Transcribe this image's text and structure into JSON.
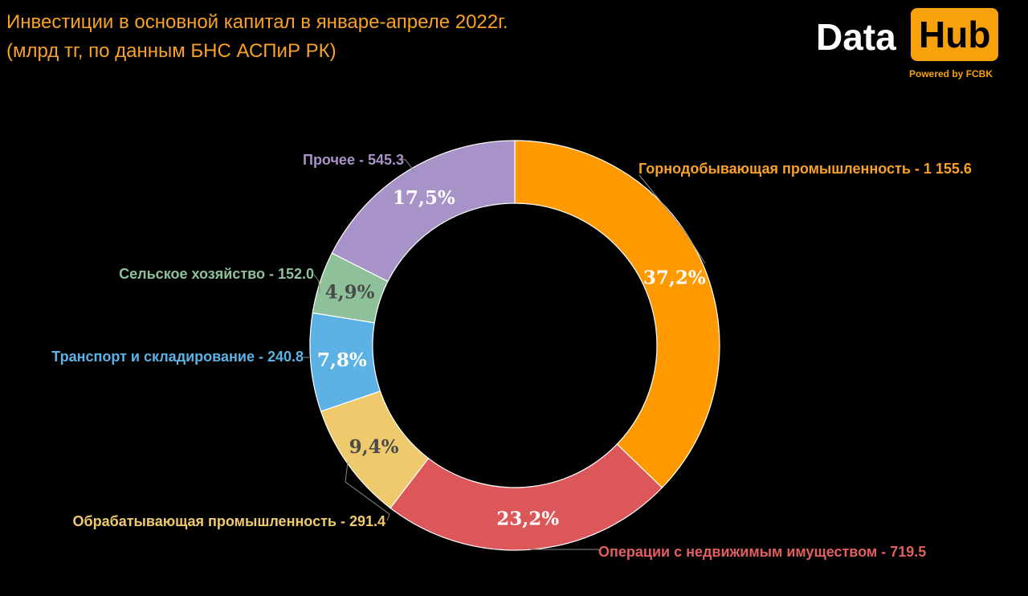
{
  "title": {
    "line1": "Инвестиции в основной капитал в январе-апреле 2022г.",
    "line2": "(млрд тг, по данным БНС АСПиР РК)"
  },
  "logo": {
    "data_text": "Data",
    "hub_text": "Hub",
    "subtitle": "Powered by FCBK"
  },
  "colors": {
    "accent": "#F7A226",
    "background": "#000000"
  },
  "chart_data": {
    "type": "pie",
    "style": "donut",
    "title": "Инвестиции в основной капитал в январе-апреле 2022г.",
    "subtitle": "(млрд тг, по данным БНС АСПиР РК)",
    "slices": [
      {
        "label": "Горнодобывающая промышленность - 1 155.6",
        "value": 1155.6,
        "percent_label": "37,2%",
        "color": "#FF9900",
        "label_color": "#F7A226",
        "pct_color": "#FFFFFF"
      },
      {
        "label": "Операции с недвижимым имуществом - 719.5",
        "value": 719.5,
        "percent_label": "23,2%",
        "color": "#DC5759",
        "label_color": "#E25F5F",
        "pct_color": "#FFFFFF"
      },
      {
        "label": "Обрабатывающая промышленность - 291.4",
        "value": 291.4,
        "percent_label": "9,4%",
        "color": "#EFCA6C",
        "label_color": "#EFCA6C",
        "pct_color": "#4A4A4A"
      },
      {
        "label": "Транспорт и складирование - 240.8",
        "value": 240.8,
        "percent_label": "7,8%",
        "color": "#5CB2E4",
        "label_color": "#5CB2E4",
        "pct_color": "#FFFFFF"
      },
      {
        "label": "Сельское хозяйство - 152.0",
        "value": 152.0,
        "percent_label": "4,9%",
        "color": "#8EC19A",
        "label_color": "#8EC19A",
        "pct_color": "#4A4A4A"
      },
      {
        "label": "Прочее - 545.3",
        "value": 545.3,
        "percent_label": "17,5%",
        "color": "#A893C8",
        "label_color": "#A893C8",
        "pct_color": "#FFFFFF"
      }
    ]
  }
}
